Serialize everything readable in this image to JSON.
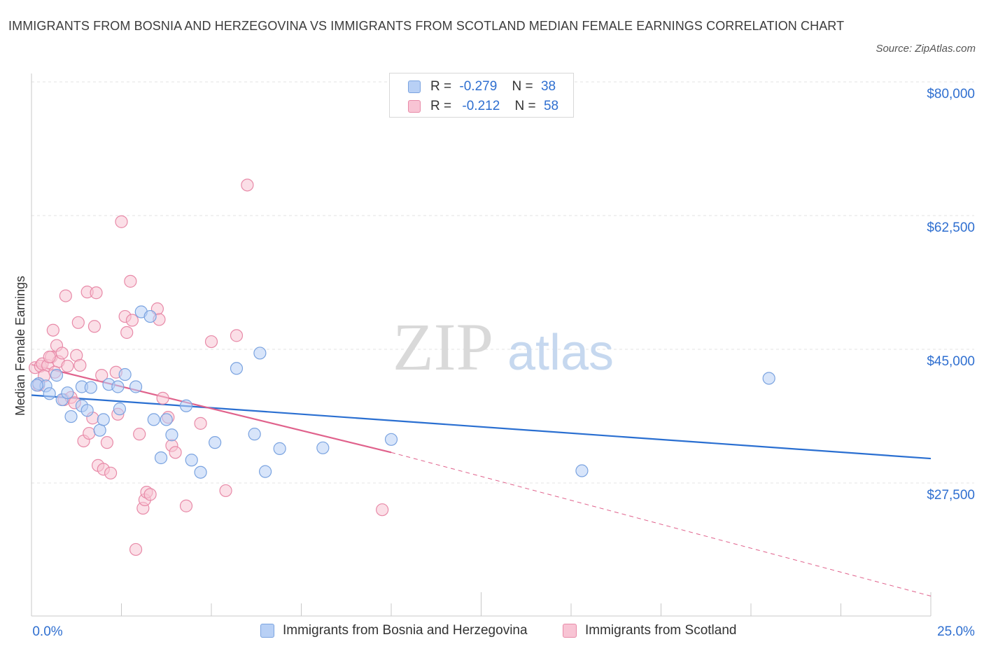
{
  "title": "IMMIGRANTS FROM BOSNIA AND HERZEGOVINA VS IMMIGRANTS FROM SCOTLAND MEDIAN FEMALE EARNINGS CORRELATION CHART",
  "source": "Source: ZipAtlas.com",
  "watermark": {
    "zip": "ZIP",
    "atlas": "atlas"
  },
  "legend": {
    "blue": {
      "r_label": "R =",
      "r_value": "-0.279",
      "n_label": "N =",
      "n_value": "38"
    },
    "pink": {
      "r_label": "R =",
      "r_value": "-0.212",
      "n_label": "N =",
      "n_value": "58"
    }
  },
  "colors": {
    "blue_fill": "#b8d0f5",
    "blue_stroke": "#7aa3e0",
    "blue_line": "#2a6fd1",
    "pink_fill": "#f8c4d4",
    "pink_stroke": "#e88aa8",
    "pink_line": "#e0628c",
    "axis_text": "#2f6fd0",
    "grid": "#e3e3e3"
  },
  "chart_data": {
    "type": "scatter",
    "title": "IMMIGRANTS FROM BOSNIA AND HERZEGOVINA VS IMMIGRANTS FROM SCOTLAND MEDIAN FEMALE EARNINGS CORRELATION CHART",
    "xlabel": "",
    "ylabel": "Median Female Earnings",
    "xlim": [
      0,
      25
    ],
    "ylim": [
      10000,
      80000
    ],
    "x_tick_labels": {
      "left": "0.0%",
      "right": "25.0%"
    },
    "y_ticks": [
      {
        "value": 80000,
        "label": "$80,000"
      },
      {
        "value": 62500,
        "label": "$62,500"
      },
      {
        "value": 45000,
        "label": "$45,000"
      },
      {
        "value": 27500,
        "label": "$27,500"
      }
    ],
    "series": [
      {
        "name": "Immigrants from Bosnia and Herzegovina",
        "color": "blue",
        "points": [
          [
            0.2,
            40.5
          ],
          [
            0.4,
            40.2
          ],
          [
            0.5,
            39.2
          ],
          [
            0.7,
            41.6
          ],
          [
            0.85,
            38.4
          ],
          [
            1.0,
            39.3
          ],
          [
            1.1,
            36.2
          ],
          [
            1.4,
            40.1
          ],
          [
            1.4,
            37.6
          ],
          [
            1.55,
            37.0
          ],
          [
            1.65,
            40.0
          ],
          [
            1.9,
            34.4
          ],
          [
            2.0,
            35.8
          ],
          [
            2.15,
            40.4
          ],
          [
            2.4,
            40.1
          ],
          [
            2.45,
            37.2
          ],
          [
            2.6,
            41.7
          ],
          [
            2.9,
            40.1
          ],
          [
            3.05,
            49.9
          ],
          [
            3.3,
            49.3
          ],
          [
            3.4,
            35.8
          ],
          [
            3.6,
            30.8
          ],
          [
            3.75,
            35.8
          ],
          [
            3.9,
            33.8
          ],
          [
            4.3,
            37.6
          ],
          [
            4.45,
            30.5
          ],
          [
            4.7,
            28.9
          ],
          [
            5.1,
            32.8
          ],
          [
            5.7,
            42.5
          ],
          [
            6.2,
            33.9
          ],
          [
            6.35,
            44.5
          ],
          [
            6.5,
            29.0
          ],
          [
            6.9,
            32.0
          ],
          [
            8.1,
            32.1
          ],
          [
            10.0,
            33.2
          ],
          [
            15.3,
            29.1
          ],
          [
            20.5,
            41.2
          ],
          [
            0.15,
            40.3
          ]
        ]
      },
      {
        "name": "Immigrants from Scotland",
        "color": "pink",
        "points": [
          [
            0.1,
            42.6
          ],
          [
            0.2,
            40.3
          ],
          [
            0.25,
            42.8
          ],
          [
            0.3,
            43.1
          ],
          [
            0.45,
            42.9
          ],
          [
            0.55,
            44.0
          ],
          [
            0.6,
            47.5
          ],
          [
            0.7,
            45.5
          ],
          [
            0.75,
            43.4
          ],
          [
            0.85,
            44.5
          ],
          [
            0.9,
            38.4
          ],
          [
            0.95,
            52.0
          ],
          [
            1.0,
            42.8
          ],
          [
            1.1,
            38.7
          ],
          [
            1.2,
            38.0
          ],
          [
            1.25,
            44.2
          ],
          [
            1.3,
            48.5
          ],
          [
            1.35,
            42.9
          ],
          [
            1.45,
            33.0
          ],
          [
            1.55,
            52.5
          ],
          [
            1.6,
            34.0
          ],
          [
            1.7,
            36.0
          ],
          [
            1.75,
            48.0
          ],
          [
            1.8,
            52.4
          ],
          [
            1.85,
            29.8
          ],
          [
            1.95,
            41.6
          ],
          [
            2.0,
            29.3
          ],
          [
            2.1,
            32.8
          ],
          [
            2.2,
            28.8
          ],
          [
            2.35,
            42.0
          ],
          [
            2.4,
            36.5
          ],
          [
            2.5,
            61.7
          ],
          [
            2.6,
            49.3
          ],
          [
            2.65,
            47.2
          ],
          [
            2.75,
            53.9
          ],
          [
            2.8,
            48.8
          ],
          [
            2.9,
            18.8
          ],
          [
            3.0,
            33.9
          ],
          [
            3.1,
            24.2
          ],
          [
            3.15,
            25.3
          ],
          [
            3.2,
            26.3
          ],
          [
            3.3,
            26.0
          ],
          [
            3.5,
            50.3
          ],
          [
            3.55,
            48.9
          ],
          [
            3.65,
            38.6
          ],
          [
            3.8,
            36.1
          ],
          [
            3.9,
            32.4
          ],
          [
            4.0,
            31.5
          ],
          [
            4.3,
            24.5
          ],
          [
            4.7,
            35.3
          ],
          [
            5.0,
            46.0
          ],
          [
            5.4,
            26.5
          ],
          [
            5.7,
            46.8
          ],
          [
            6.0,
            66.5
          ],
          [
            9.75,
            24.0
          ],
          [
            0.35,
            41.5
          ],
          [
            0.5,
            44.0
          ],
          [
            0.65,
            42.0
          ]
        ]
      }
    ],
    "trend_lines": [
      {
        "series": "Immigrants from Bosnia and Herzegovina",
        "x0": 0,
        "y0": 39.0,
        "x1": 25,
        "y1": 30.7,
        "style": "solid"
      },
      {
        "series": "Immigrants from Scotland",
        "x0": 0,
        "y0": 43.0,
        "x1": 10,
        "y1": 31.5,
        "style": "solid"
      },
      {
        "series": "Immigrants from Scotland",
        "x0": 10,
        "y0": 31.5,
        "x1": 25,
        "y1": 12.7,
        "style": "dashed"
      }
    ],
    "y_unit": "thousands of dollars",
    "legend_position": "top-center"
  }
}
